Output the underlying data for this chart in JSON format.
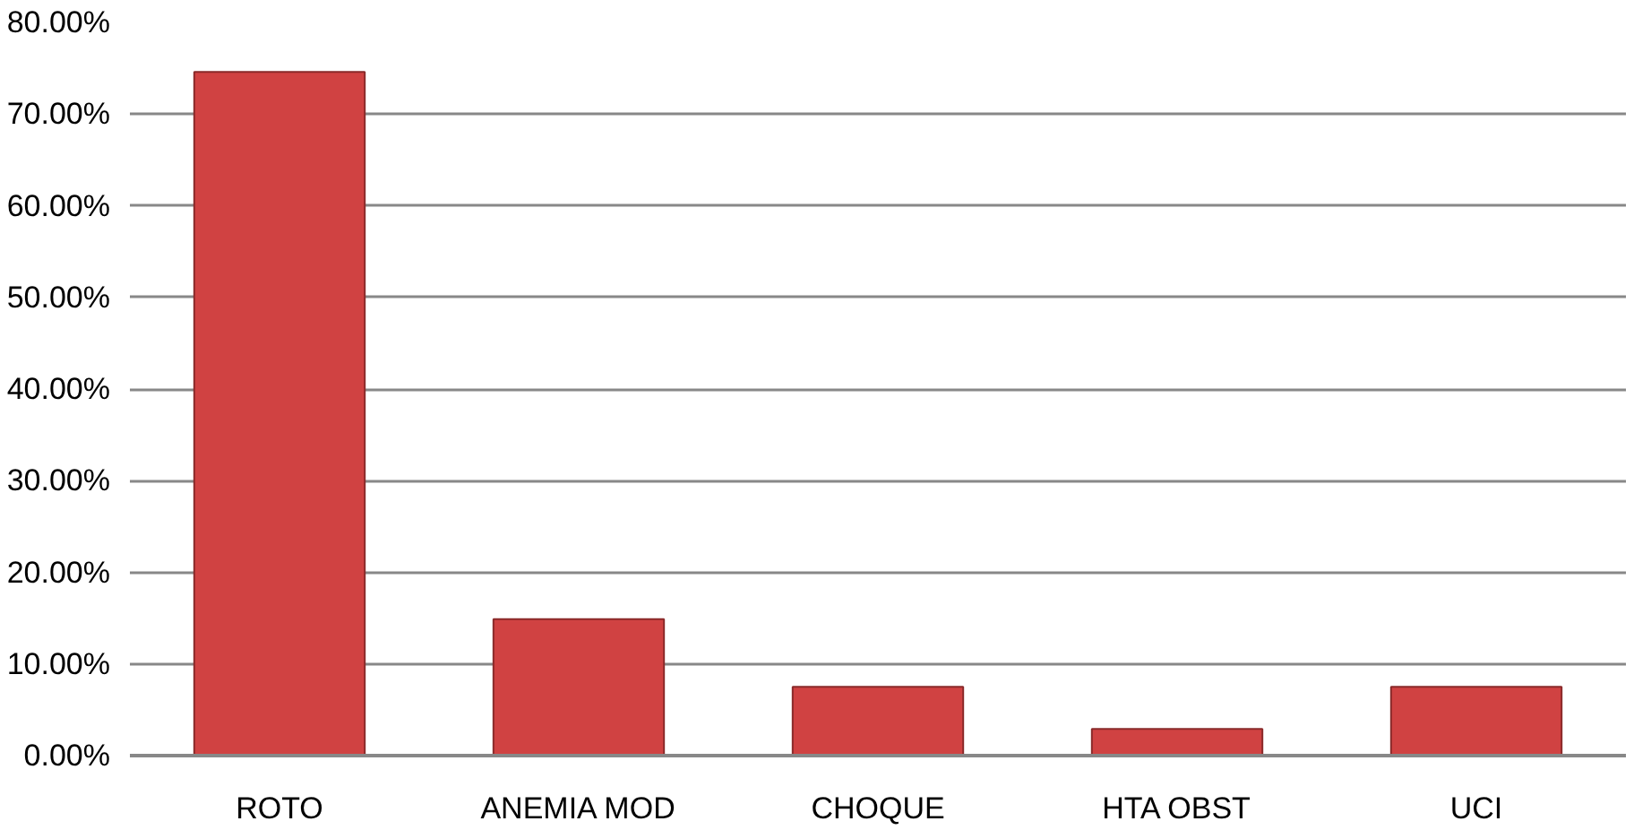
{
  "chart_data": {
    "type": "bar",
    "categories": [
      "ROTO",
      "ANEMIA MOD",
      "CHOQUE",
      "HTA OBST",
      "UCI"
    ],
    "values": [
      74.6,
      14.9,
      7.5,
      2.9,
      7.5
    ],
    "color": "#d04242",
    "ylim": [
      0,
      80
    ],
    "yticks": [
      {
        "value": 0,
        "label": "0.00%"
      },
      {
        "value": 10,
        "label": "10.00%"
      },
      {
        "value": 20,
        "label": "20.00%"
      },
      {
        "value": 30,
        "label": "30.00%"
      },
      {
        "value": 40,
        "label": "40.00%"
      },
      {
        "value": 50,
        "label": "50.00%"
      },
      {
        "value": 60,
        "label": "60.00%"
      },
      {
        "value": 70,
        "label": "70.00%"
      },
      {
        "value": 80,
        "label": "80.00%"
      }
    ],
    "grid": "y"
  }
}
